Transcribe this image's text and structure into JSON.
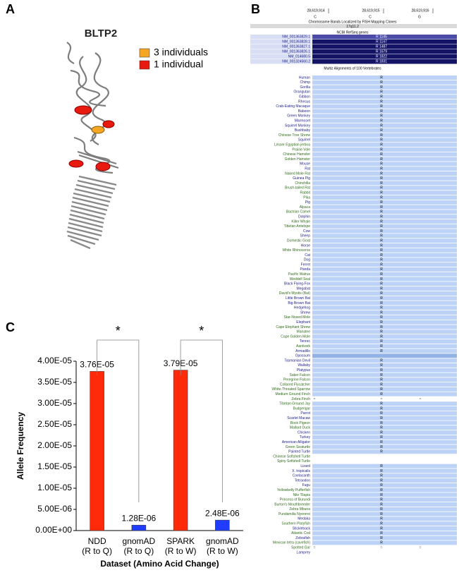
{
  "panel_labels": [
    "A",
    "B",
    "C"
  ],
  "panel_a": {
    "title": "BLTP2",
    "legend": [
      {
        "label": "3 individuals",
        "color": "#f5a623"
      },
      {
        "label": "1 individual",
        "color": "#e8190f"
      }
    ]
  },
  "panel_b": {
    "positions": [
      "28,619,914",
      "28,619,915",
      "28,619,916"
    ],
    "bases": [
      "C",
      "C",
      "G"
    ],
    "band_track": "Chromosome Bands Localized by FISH Mapping Clones",
    "band": "17q11.2",
    "gene_track": "NCBI RefSeq genes",
    "transcripts": [
      {
        "name": "NM_001363829.1",
        "label": "R 1145"
      },
      {
        "name": "NM_001363828.1",
        "label": "R 1147"
      },
      {
        "name": "NM_001363827.1",
        "label": "R 1487"
      },
      {
        "name": "NM_001363826.1",
        "label": "R 1679"
      },
      {
        "name": "NM_014680.5",
        "label": "R 1822"
      },
      {
        "name": "NM_001324560.2",
        "label": "R 1831"
      }
    ],
    "alignment_track": "Multiz Alignments of 100 Vertebrates",
    "species_colors": [
      "#1c1c8a",
      "#2f6b1a"
    ],
    "species": [
      [
        "Human",
        0,
        "R"
      ],
      [
        "Chimp",
        0,
        "R"
      ],
      [
        "Gorilla",
        0,
        "R"
      ],
      [
        "Orangutan",
        0,
        "R"
      ],
      [
        "Gibbon",
        0,
        "R"
      ],
      [
        "Rhesus",
        0,
        "R"
      ],
      [
        "Crab-Eating Macaque",
        0,
        "R"
      ],
      [
        "Baboon",
        0,
        "R"
      ],
      [
        "Green Monkey",
        0,
        "R"
      ],
      [
        "Marmoset",
        0,
        "R"
      ],
      [
        "Squirrel Monkey",
        0,
        "R"
      ],
      [
        "Bushbaby",
        0,
        "R"
      ],
      [
        "Chinese Tree Shrew",
        1,
        "R"
      ],
      [
        "Squirrel",
        0,
        "R"
      ],
      [
        "Lesser Egyptian jerboa",
        1,
        "R"
      ],
      [
        "Prairie Vole",
        1,
        "R"
      ],
      [
        "Chinese Hamster",
        1,
        "R"
      ],
      [
        "Golden Hamster",
        1,
        "R"
      ],
      [
        "Mouse",
        0,
        "R"
      ],
      [
        "Rat",
        0,
        "R"
      ],
      [
        "Naked Mole Rat",
        1,
        "R"
      ],
      [
        "Guinea Pig",
        0,
        "R"
      ],
      [
        "Chinchilla",
        1,
        "R"
      ],
      [
        "Brush-tailed Rat",
        1,
        "R"
      ],
      [
        "Rabbit",
        1,
        "R"
      ],
      [
        "Pika",
        1,
        "R"
      ],
      [
        "Pig",
        0,
        "R"
      ],
      [
        "Alpaca",
        1,
        "R"
      ],
      [
        "Bactrian Camel",
        1,
        "R"
      ],
      [
        "Dolphin",
        0,
        "R"
      ],
      [
        "Killer Whale",
        1,
        "R"
      ],
      [
        "Tibetan Antelope",
        1,
        "R"
      ],
      [
        "Cow",
        0,
        "R"
      ],
      [
        "Sheep",
        0,
        "R"
      ],
      [
        "Domestic Goat",
        1,
        "R"
      ],
      [
        "Horse",
        0,
        "R"
      ],
      [
        "White Rhinoceros",
        1,
        "R"
      ],
      [
        "Cat",
        0,
        "R"
      ],
      [
        "Dog",
        0,
        "R"
      ],
      [
        "Ferret",
        0,
        "R"
      ],
      [
        "Panda",
        0,
        "R"
      ],
      [
        "Pacific Walrus",
        1,
        "R"
      ],
      [
        "Weddell Seal",
        1,
        "R"
      ],
      [
        "Black Flying-Fox",
        0,
        "R"
      ],
      [
        "Megabat",
        0,
        "R"
      ],
      [
        "David's Myotis (Bat)",
        1,
        "R"
      ],
      [
        "Little Brown Bat",
        0,
        "R"
      ],
      [
        "Big Brown Bat",
        0,
        "R"
      ],
      [
        "Hedgehog",
        0,
        "R"
      ],
      [
        "Shrew",
        0,
        "R"
      ],
      [
        "Star-Nosed Mole",
        1,
        "R"
      ],
      [
        "Elephant",
        0,
        "R"
      ],
      [
        "Cape Elephant Shrew",
        1,
        "R"
      ],
      [
        "Manatee",
        1,
        "R"
      ],
      [
        "Cape Golden Mole",
        1,
        "R"
      ],
      [
        "Tenrec",
        0,
        "R"
      ],
      [
        "Aardvark",
        1,
        "R"
      ],
      [
        "Armadillo",
        0,
        "R"
      ],
      [
        "Opossum",
        0,
        ""
      ],
      [
        "Tasmanian Devil",
        0,
        "R"
      ],
      [
        "Wallaby",
        0,
        "R"
      ],
      [
        "Platypus",
        0,
        "R"
      ],
      [
        "Saker Falcon",
        1,
        "R"
      ],
      [
        "Peregrine Falcon",
        1,
        "R"
      ],
      [
        "Collared Flycatcher",
        1,
        "R"
      ],
      [
        "White-Throated Sparrow",
        1,
        "R"
      ],
      [
        "Medium Ground Finch",
        1,
        "R"
      ],
      [
        "Zebra Finch",
        1,
        "="
      ],
      [
        "Tibetan Ground Jay",
        1,
        "R"
      ],
      [
        "Budgerigar",
        1,
        "R"
      ],
      [
        "Parrot",
        0,
        "R"
      ],
      [
        "Scarlet Macaw",
        0,
        "R"
      ],
      [
        "Rock Pigeon",
        1,
        "R"
      ],
      [
        "Mallard Duck",
        1,
        "R"
      ],
      [
        "Chicken",
        0,
        "R"
      ],
      [
        "Turkey",
        0,
        "R"
      ],
      [
        "American Alligator",
        0,
        "R"
      ],
      [
        "Green Seaturtle",
        1,
        "R"
      ],
      [
        "Painted Turtle",
        0,
        "R"
      ],
      [
        "Chinese Softshell Turtle",
        1,
        ""
      ],
      [
        "Spiny Softshell Turtle",
        1,
        ""
      ],
      [
        "Lizard",
        0,
        "R"
      ],
      [
        "X. tropicalis",
        0,
        "R"
      ],
      [
        "Coelacanth",
        0,
        "R"
      ],
      [
        "Tetraodon",
        0,
        "R"
      ],
      [
        "Fugu",
        0,
        "R"
      ],
      [
        "Yellowbelly Pufferfish",
        1,
        "R"
      ],
      [
        "Nile Tilapia",
        1,
        "R"
      ],
      [
        "Princess of Burundi",
        1,
        "R"
      ],
      [
        "Burton's Mouthbreeder",
        1,
        "R"
      ],
      [
        "Zebra Mbuna",
        1,
        "R"
      ],
      [
        "Pundamilia Nyererei",
        1,
        "R"
      ],
      [
        "Medaka",
        0,
        "R"
      ],
      [
        "Southern Platyfish",
        1,
        "R"
      ],
      [
        "Stickleback",
        0,
        "R"
      ],
      [
        "Atlantic Cod",
        1,
        "R"
      ],
      [
        "Zebrafish",
        0,
        "R"
      ],
      [
        "Mexican tetra (cavefish)",
        1,
        "R"
      ],
      [
        "Spotted Gar",
        1,
        "="
      ],
      [
        "Lamprey",
        0,
        ""
      ]
    ]
  },
  "chart_data": {
    "type": "bar",
    "categories": [
      [
        "NDD",
        "(R to Q)"
      ],
      [
        "gnomAD",
        "(R to Q)"
      ],
      [
        "SPARK",
        "(R to W)"
      ],
      [
        "gnomAD",
        "(R to W)"
      ]
    ],
    "values": [
      3.76e-05,
      1.28e-06,
      3.79e-05,
      2.48e-06
    ],
    "value_labels": [
      "3.76E-05",
      "1.28E-06",
      "3.79E-05",
      "2.48E-06"
    ],
    "colors": [
      "#ff2a0a",
      "#1f3cff",
      "#ff2a0a",
      "#1f3cff"
    ],
    "annotations": [
      "*",
      "*"
    ],
    "y_label": "Allele Frequency",
    "x_label": "Dataset (Amino Acid Change)",
    "ylim": [
      0,
      4e-05
    ],
    "yticks": [
      {
        "value": 0,
        "label": "0.00E+00"
      },
      {
        "value": 5e-06,
        "label": "5.00E-06"
      },
      {
        "value": 1e-05,
        "label": "1.00E-05"
      },
      {
        "value": 1.5e-05,
        "label": "1.50E-05"
      },
      {
        "value": 2e-05,
        "label": "2.00E-05"
      },
      {
        "value": 2.5e-05,
        "label": "2.50E-05"
      },
      {
        "value": 3e-05,
        "label": "3.00E-05"
      },
      {
        "value": 3.5e-05,
        "label": "3.50E-05"
      },
      {
        "value": 4e-05,
        "label": "4.00E-05"
      }
    ]
  }
}
